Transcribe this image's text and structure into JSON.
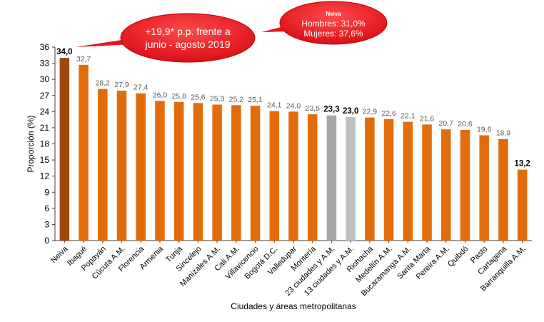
{
  "chart_data": {
    "type": "bar",
    "title": "",
    "xlabel": "Ciudades y áreas metropolitanas",
    "ylabel": "Proporción (%)",
    "ylim": [
      0,
      36
    ],
    "yticks": [
      "0",
      "3",
      "6",
      "9",
      "12",
      "15",
      "18",
      "21",
      "24",
      "27",
      "30",
      "33",
      "36"
    ],
    "grid": false,
    "categories": [
      "Neiva",
      "Ibagué",
      "Popayán",
      "Cúcuta A.M.",
      "Florencia",
      "Armenia",
      "Tunja",
      "Sincelejo",
      "Manizales A.M.",
      "Cali A.M.",
      "Villavicencio",
      "Bogotá D.C.",
      "Valledupar",
      "Montería",
      "23 ciudades y A.M.",
      "13 ciudades y A.M.",
      "Riohacha",
      "Medellín A.M.",
      "Bucaramanga A.M.",
      "Santa Marta",
      "Pereira A.M.",
      "Quibdó",
      "Pasto",
      "Cartagena",
      "Barranquilla A.M."
    ],
    "values": [
      34.0,
      32.7,
      28.2,
      27.9,
      27.4,
      26.0,
      25.8,
      25.6,
      25.3,
      25.2,
      25.1,
      24.1,
      24.0,
      23.5,
      23.3,
      23.0,
      22.9,
      22.6,
      22.1,
      21.6,
      20.7,
      20.6,
      19.6,
      18.9,
      13.2
    ],
    "value_labels": [
      "34,0",
      "32,7",
      "28,2",
      "27,9",
      "27,4",
      "26,0",
      "25,8",
      "25,6",
      "25,3",
      "25,2",
      "25,1",
      "24,1",
      "24,0",
      "23,5",
      "23,3",
      "23,0",
      "22,9",
      "22,6",
      "22,1",
      "21,6",
      "20,7",
      "20,6",
      "19,6",
      "18,9",
      "13,2"
    ],
    "bold_labels": [
      0,
      14,
      15,
      24
    ],
    "bar_colors": [
      "#A0470F",
      "#E36C0A",
      "#E36C0A",
      "#E36C0A",
      "#E36C0A",
      "#E36C0A",
      "#E36C0A",
      "#E36C0A",
      "#E36C0A",
      "#E36C0A",
      "#E36C0A",
      "#E36C0A",
      "#E36C0A",
      "#E36C0A",
      "#A6A6A6",
      "#C0C0C0",
      "#E36C0A",
      "#E36C0A",
      "#E36C0A",
      "#E36C0A",
      "#E36C0A",
      "#E36C0A",
      "#E36C0A",
      "#E36C0A",
      "#E36C0A"
    ],
    "annotations": [
      {
        "name": "callout-change",
        "lines": [
          "+19,9* p.p. frente a",
          "junio - agosto 2019"
        ]
      },
      {
        "name": "callout-neiva",
        "title": "Neiva",
        "lines": [
          "Hombres: 31,0%",
          "Mujeres: 37,6%"
        ]
      }
    ]
  },
  "colors": {
    "callout_fill": "#E8141E",
    "axis": "#404040",
    "label_text": "#595959"
  }
}
